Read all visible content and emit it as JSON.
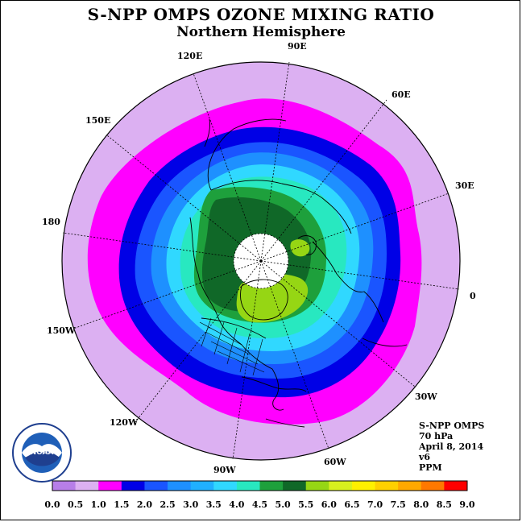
{
  "title": "S-NPP OMPS OZONE MIXING RATIO",
  "subtitle": "Northern Hemisphere",
  "longitude_labels": [
    "90E",
    "60E",
    "30E",
    "0",
    "30W",
    "60W",
    "90W",
    "120W",
    "150W",
    "180",
    "150E",
    "120E"
  ],
  "info": {
    "instrument": "S-NPP OMPS",
    "level": "70 hPa",
    "date": "April 8, 2014",
    "version": "v6",
    "units": "PPM"
  },
  "logo_text": "NOAA",
  "colorbar": {
    "labels": [
      "0.0",
      "0.5",
      "1.0",
      "1.5",
      "2.0",
      "2.5",
      "3.0",
      "3.5",
      "4.0",
      "4.5",
      "5.0",
      "5.5",
      "6.0",
      "6.5",
      "7.0",
      "7.5",
      "8.0",
      "8.5",
      "9.0"
    ],
    "colors": [
      "#b77ee8",
      "#dcb0f2",
      "#ff00ff",
      "#0000e6",
      "#1a55ff",
      "#1e90ff",
      "#20b0ff",
      "#30d8ff",
      "#28e8c0",
      "#1ea03c",
      "#106828",
      "#96d614",
      "#d8f01e",
      "#fff000",
      "#ffd000",
      "#ffa800",
      "#ff7800",
      "#ff0000",
      "#8c5a3c"
    ]
  },
  "map_colors": {
    "background": "#dcb0f2",
    "ring_magenta": "#ff00ff",
    "ring_blue_dark": "#0000e6",
    "ring_blue": "#1a55ff",
    "ring_sky": "#1e90ff",
    "ring_cyan": "#30d8ff",
    "ring_teal": "#28e8c0",
    "core_green": "#1ea03c",
    "core_dark_green": "#106828",
    "high_lime": "#96d614",
    "no_data": "#ffffff"
  }
}
